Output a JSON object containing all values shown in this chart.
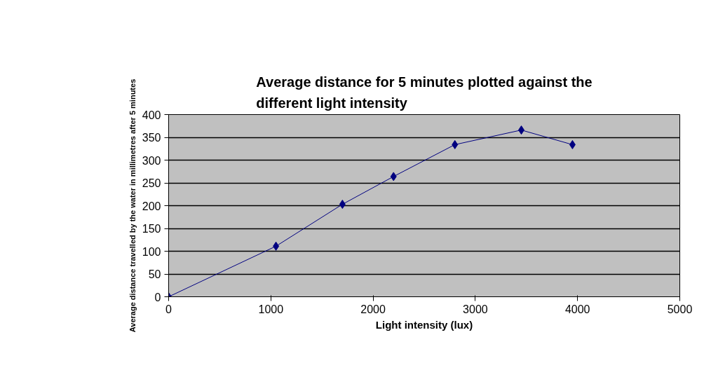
{
  "chart_data": {
    "type": "line",
    "title": "Average distance for 5 minutes plotted against the different light intensity",
    "xlabel": "Light intensity (lux)",
    "ylabel": "Average distance travelled by the water in millimetres after 5 minutes",
    "x": [
      0,
      1050,
      1700,
      2200,
      2800,
      3450,
      3950
    ],
    "series": [
      {
        "color": "#000080",
        "values": [
          0,
          111,
          203,
          264,
          334,
          366,
          334
        ]
      }
    ],
    "xlim": [
      0,
      5000
    ],
    "xticks": [
      0,
      1000,
      2000,
      3000,
      4000,
      5000
    ],
    "ylim": [
      0,
      400
    ],
    "yticks": [
      0,
      50,
      100,
      150,
      200,
      250,
      300,
      350,
      400
    ],
    "grid": "y",
    "marker": "diamond",
    "line_style": "solid"
  }
}
